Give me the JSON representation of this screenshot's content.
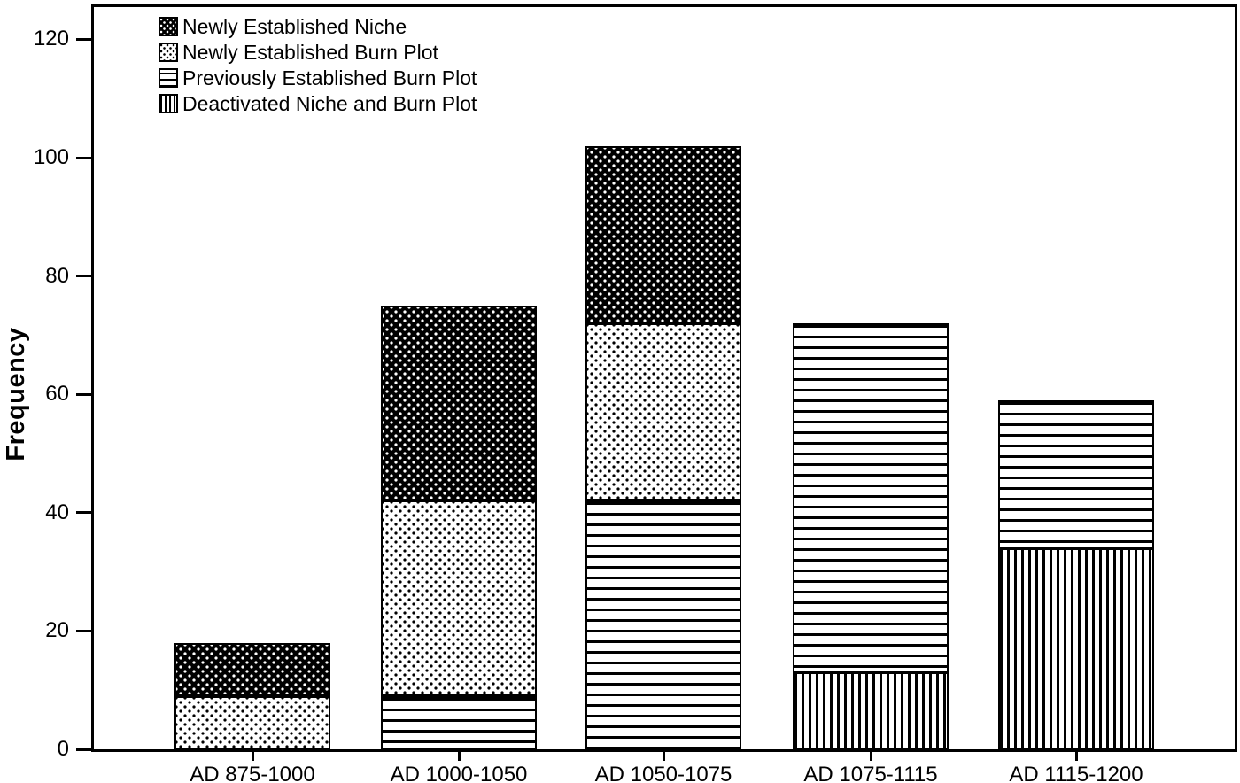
{
  "figure": {
    "background_color": "#ffffff",
    "frame_color": "#000000",
    "text_color": "#000000"
  },
  "chart_data": {
    "type": "bar",
    "stacked": true,
    "title": "",
    "xlabel": "",
    "ylabel": "Frequency",
    "categories": [
      "AD 875-1000",
      "AD 1000-1050",
      "AD 1050-1075",
      "AD 1075-1115",
      "AD 1115-1200"
    ],
    "series": [
      {
        "name": "Newly Established Niche",
        "pattern": "black-with-white-dots",
        "values": [
          9,
          33,
          30,
          0,
          0
        ]
      },
      {
        "name": "Newly Established Burn Plot",
        "pattern": "white-with-black-dots",
        "values": [
          9,
          33,
          30,
          0,
          0
        ]
      },
      {
        "name": "Previously Established Burn Plot",
        "pattern": "horizontal-lines",
        "values": [
          0,
          9,
          42,
          59,
          25
        ]
      },
      {
        "name": "Deactivated Niche and Burn Plot",
        "pattern": "vertical-lines",
        "values": [
          0,
          0,
          0,
          13,
          34
        ]
      }
    ],
    "stack_order_bottom_to_top": [
      "Deactivated Niche and Burn Plot",
      "Previously Established Burn Plot",
      "Newly Established Burn Plot",
      "Newly Established Niche"
    ],
    "totals": [
      18,
      75,
      102,
      72,
      59
    ],
    "yticks": [
      0,
      20,
      40,
      60,
      80,
      100,
      120
    ],
    "ylim": [
      0,
      126
    ],
    "grid": false,
    "legend_position": "top-left-inside",
    "bar_fill_colors": {
      "foreground": "#000000",
      "background": "#ffffff"
    }
  }
}
